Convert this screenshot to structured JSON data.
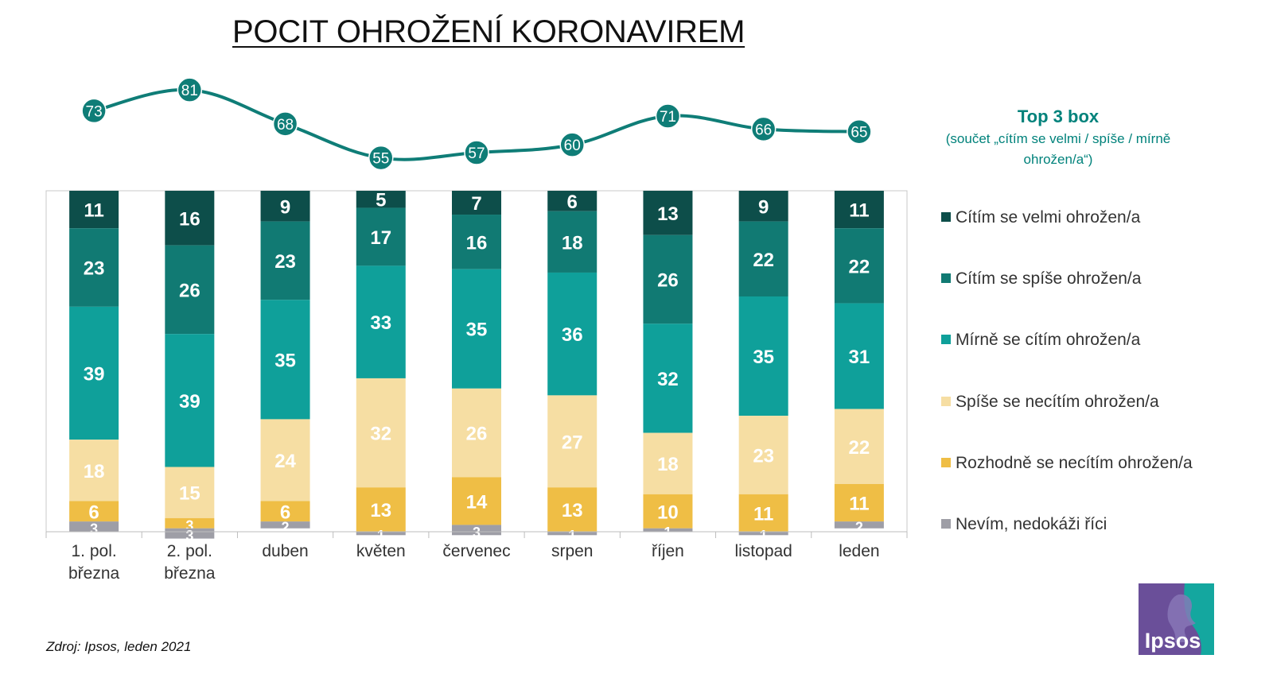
{
  "title": "POCIT OHROŽENÍ KORONAVIREM",
  "top3": {
    "title": "Top 3 box",
    "subtitle_line1": "(součet „cítím se velmi / spíše / mírně",
    "subtitle_line2": "ohrožen/a“)"
  },
  "source": "Zdroj: Ipsos, leden 2021",
  "logo_text": "Ipsos",
  "colors": {
    "velmi": "#0d4e4a",
    "spise": "#117a73",
    "mirne": "#0fa09a",
    "spise_ne": "#f6dea3",
    "rozhodne_ne": "#efbe45",
    "nevim": "#9e9ea6",
    "line": "#0f7d77",
    "logo": "#6a4f99"
  },
  "chart_data": {
    "type": "bar",
    "stacked": true,
    "categories": [
      [
        "1. pol.",
        "března"
      ],
      [
        "2. pol.",
        "března"
      ],
      [
        "duben"
      ],
      [
        "květen"
      ],
      [
        "červenec"
      ],
      [
        "srpen"
      ],
      [
        "říjen"
      ],
      [
        "listopad"
      ],
      [
        "leden"
      ]
    ],
    "series": [
      {
        "key": "velmi",
        "name": "Cítím se velmi ohrožen/a",
        "values": [
          11,
          16,
          9,
          5,
          7,
          6,
          13,
          9,
          11
        ],
        "label_color": "#ffffff"
      },
      {
        "key": "spise",
        "name": "Cítím se spíše ohrožen/a",
        "values": [
          23,
          26,
          23,
          17,
          16,
          18,
          26,
          22,
          22
        ],
        "label_color": "#ffffff"
      },
      {
        "key": "mirne",
        "name": "Mírně se cítím ohrožen/a",
        "values": [
          39,
          39,
          35,
          33,
          35,
          36,
          32,
          35,
          31
        ],
        "label_color": "#ffffff"
      },
      {
        "key": "spise_ne",
        "name": "Spíše se necítím ohrožen/a",
        "values": [
          18,
          15,
          24,
          32,
          26,
          27,
          18,
          23,
          22
        ],
        "label_color": "#ffffff"
      },
      {
        "key": "rozhodne_ne",
        "name": "Rozhodně se necítím ohrožen/a",
        "values": [
          6,
          3,
          6,
          13,
          14,
          13,
          10,
          11,
          11
        ],
        "label_color": "#ffffff"
      },
      {
        "key": "nevim",
        "name": "Nevím, nedokáži říci",
        "values": [
          3,
          3,
          2,
          1,
          3,
          1,
          1,
          1,
          2
        ],
        "label_color": "#ffffff"
      }
    ],
    "line": {
      "name": "Top 3 box",
      "values": [
        73,
        81,
        68,
        55,
        57,
        60,
        71,
        66,
        65
      ]
    },
    "ylim": [
      0,
      100
    ],
    "legend": "right"
  }
}
